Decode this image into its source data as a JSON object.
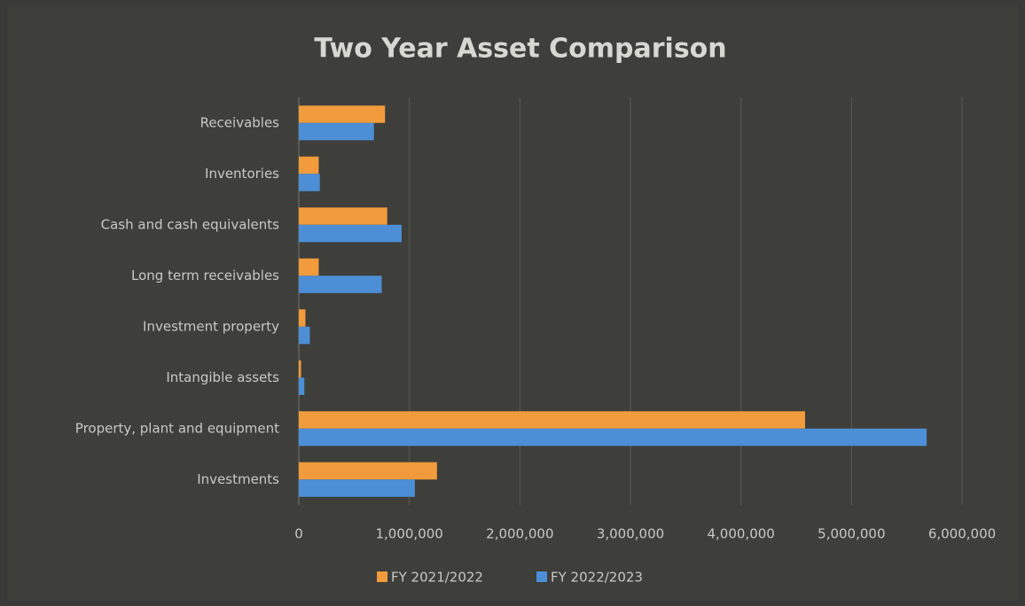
{
  "chart_data": {
    "type": "bar",
    "orientation": "horizontal",
    "title": "Two Year Asset Comparison",
    "categories": [
      "Receivables",
      "Inventories",
      "Cash and cash equivalents",
      "Long term receivables",
      "Investment property",
      "Intangible assets",
      "Property, plant and equipment",
      "Investments"
    ],
    "series": [
      {
        "name": "FY 2021/2022",
        "color": "#f29b3c",
        "values": [
          780000,
          180000,
          800000,
          180000,
          60000,
          20000,
          4580000,
          1250000
        ]
      },
      {
        "name": "FY 2022/2023",
        "color": "#4d8fd6",
        "values": [
          680000,
          190000,
          930000,
          750000,
          100000,
          50000,
          5680000,
          1050000
        ]
      }
    ],
    "xlim": [
      0,
      6000000
    ],
    "xticks": [
      0,
      {
        "value": 1000000,
        "label": "1,000,000"
      },
      {
        "value": 2000000,
        "label": "2,000,000"
      },
      {
        "value": 3000000,
        "label": "3,000,000"
      },
      {
        "value": 4000000,
        "label": "4,000,000"
      },
      {
        "value": 5000000,
        "label": "5,000,000"
      },
      {
        "value": 6000000,
        "label": "6,000,000"
      }
    ],
    "grid": true,
    "legend": "bottom"
  }
}
